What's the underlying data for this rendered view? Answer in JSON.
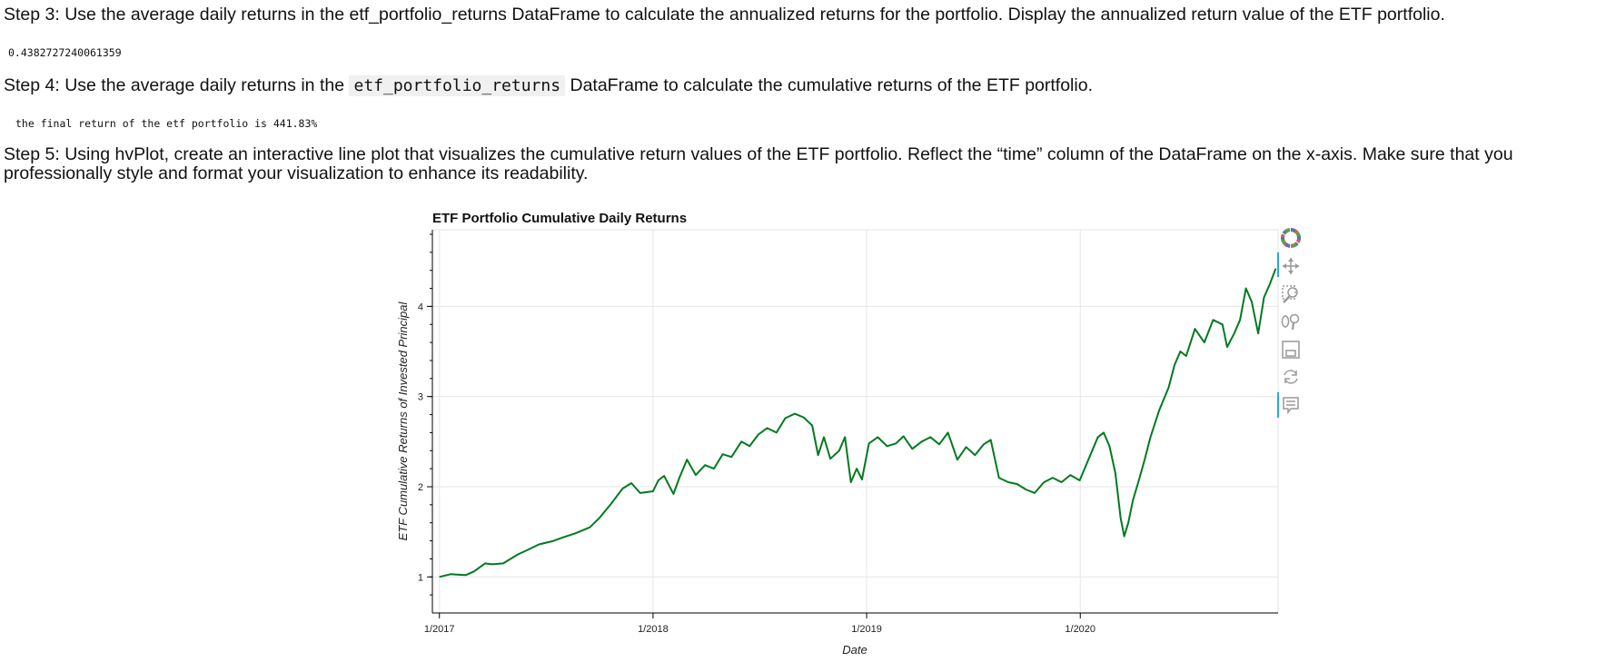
{
  "step3": {
    "text": "Step 3: Use the average daily returns in the etf_portfolio_returns DataFrame to calculate the annualized returns for the portfolio. Display the annualized return value of the ETF portfolio.",
    "output": "0.4382727240061359"
  },
  "step4": {
    "text_before": "Step 4: Use the average daily returns in the ",
    "code": "etf_portfolio_returns",
    "text_after": " DataFrame to calculate the cumulative returns of the ETF portfolio.",
    "output": "the final return of the etf portfolio is 441.83%"
  },
  "step5": {
    "text": "Step 5: Using hvPlot, create an interactive line plot that visualizes the cumulative return values of the ETF portfolio. Reflect the “time” column of the DataFrame on the x-axis. Make sure that you professionally style and format your visualization to enhance its readability."
  },
  "toolbar": {
    "tools": [
      "bokeh-logo-icon",
      "pan-icon",
      "box-zoom-icon",
      "wheel-zoom-icon",
      "save-icon",
      "reset-icon",
      "hover-icon"
    ]
  },
  "chart_data": {
    "type": "line",
    "title": "ETF Portfolio Cumulative Daily Returns",
    "xlabel": "Date",
    "ylabel": "ETF Cumulative Returns of Invested Principal",
    "x_ticks": [
      "1/2017",
      "1/2018",
      "1/2019",
      "1/2020"
    ],
    "x_tick_dates": [
      "2017-01-01",
      "2018-01-01",
      "2019-01-01",
      "2020-01-01"
    ],
    "y_ticks": [
      1,
      2,
      3,
      4
    ],
    "xlim": [
      "2016-12-20",
      "2020-12-04"
    ],
    "ylim": [
      0.6,
      4.85
    ],
    "grid": true,
    "color": "#007a1f",
    "series": [
      {
        "x": [
          "2017-01-01",
          "2017-01-20",
          "2017-02-15",
          "2017-03-01",
          "2017-03-20",
          "2017-04-01",
          "2017-04-20",
          "2017-05-15",
          "2017-06-01",
          "2017-06-20",
          "2017-07-15",
          "2017-08-01",
          "2017-08-20",
          "2017-09-15",
          "2017-10-01",
          "2017-10-20",
          "2017-11-10",
          "2017-11-25",
          "2017-12-10",
          "2018-01-01",
          "2018-01-10",
          "2018-01-20",
          "2018-02-05",
          "2018-02-15",
          "2018-02-28",
          "2018-03-15",
          "2018-03-31",
          "2018-04-15",
          "2018-04-30",
          "2018-05-15",
          "2018-06-01",
          "2018-06-15",
          "2018-06-30",
          "2018-07-15",
          "2018-07-31",
          "2018-08-15",
          "2018-08-31",
          "2018-09-15",
          "2018-09-30",
          "2018-10-10",
          "2018-10-20",
          "2018-10-31",
          "2018-11-15",
          "2018-11-25",
          "2018-12-05",
          "2018-12-15",
          "2018-12-24",
          "2019-01-05",
          "2019-01-20",
          "2019-02-05",
          "2019-02-20",
          "2019-03-05",
          "2019-03-20",
          "2019-04-05",
          "2019-04-20",
          "2019-05-05",
          "2019-05-20",
          "2019-06-05",
          "2019-06-20",
          "2019-07-05",
          "2019-07-20",
          "2019-08-01",
          "2019-08-15",
          "2019-08-31",
          "2019-09-15",
          "2019-09-30",
          "2019-10-15",
          "2019-10-31",
          "2019-11-15",
          "2019-11-30",
          "2019-12-15",
          "2019-12-31",
          "2020-01-15",
          "2020-01-31",
          "2020-02-10",
          "2020-02-20",
          "2020-03-01",
          "2020-03-10",
          "2020-03-16",
          "2020-03-23",
          "2020-03-31",
          "2020-04-10",
          "2020-04-20",
          "2020-04-30",
          "2020-05-15",
          "2020-05-31",
          "2020-06-10",
          "2020-06-20",
          "2020-06-30",
          "2020-07-15",
          "2020-07-31",
          "2020-08-15",
          "2020-08-31",
          "2020-09-08",
          "2020-09-20",
          "2020-09-30",
          "2020-10-10",
          "2020-10-20",
          "2020-10-31",
          "2020-11-10",
          "2020-11-20",
          "2020-11-30"
        ],
        "y": [
          1.0,
          1.03,
          1.02,
          1.06,
          1.15,
          1.14,
          1.15,
          1.25,
          1.3,
          1.36,
          1.4,
          1.44,
          1.48,
          1.55,
          1.65,
          1.8,
          1.98,
          2.04,
          1.93,
          1.95,
          2.07,
          2.12,
          1.92,
          2.1,
          2.3,
          2.13,
          2.24,
          2.2,
          2.36,
          2.33,
          2.5,
          2.45,
          2.58,
          2.65,
          2.6,
          2.76,
          2.81,
          2.77,
          2.68,
          2.35,
          2.55,
          2.31,
          2.4,
          2.55,
          2.05,
          2.2,
          2.08,
          2.48,
          2.55,
          2.45,
          2.48,
          2.56,
          2.42,
          2.5,
          2.55,
          2.47,
          2.6,
          2.3,
          2.44,
          2.35,
          2.47,
          2.52,
          2.1,
          2.05,
          2.03,
          1.97,
          1.93,
          2.05,
          2.1,
          2.05,
          2.13,
          2.07,
          2.3,
          2.55,
          2.6,
          2.45,
          2.15,
          1.65,
          1.45,
          1.6,
          1.85,
          2.07,
          2.3,
          2.55,
          2.85,
          3.1,
          3.35,
          3.5,
          3.45,
          3.75,
          3.6,
          3.85,
          3.8,
          3.55,
          3.7,
          3.85,
          4.2,
          4.05,
          3.7,
          4.1,
          4.25,
          4.42
        ]
      }
    ]
  }
}
